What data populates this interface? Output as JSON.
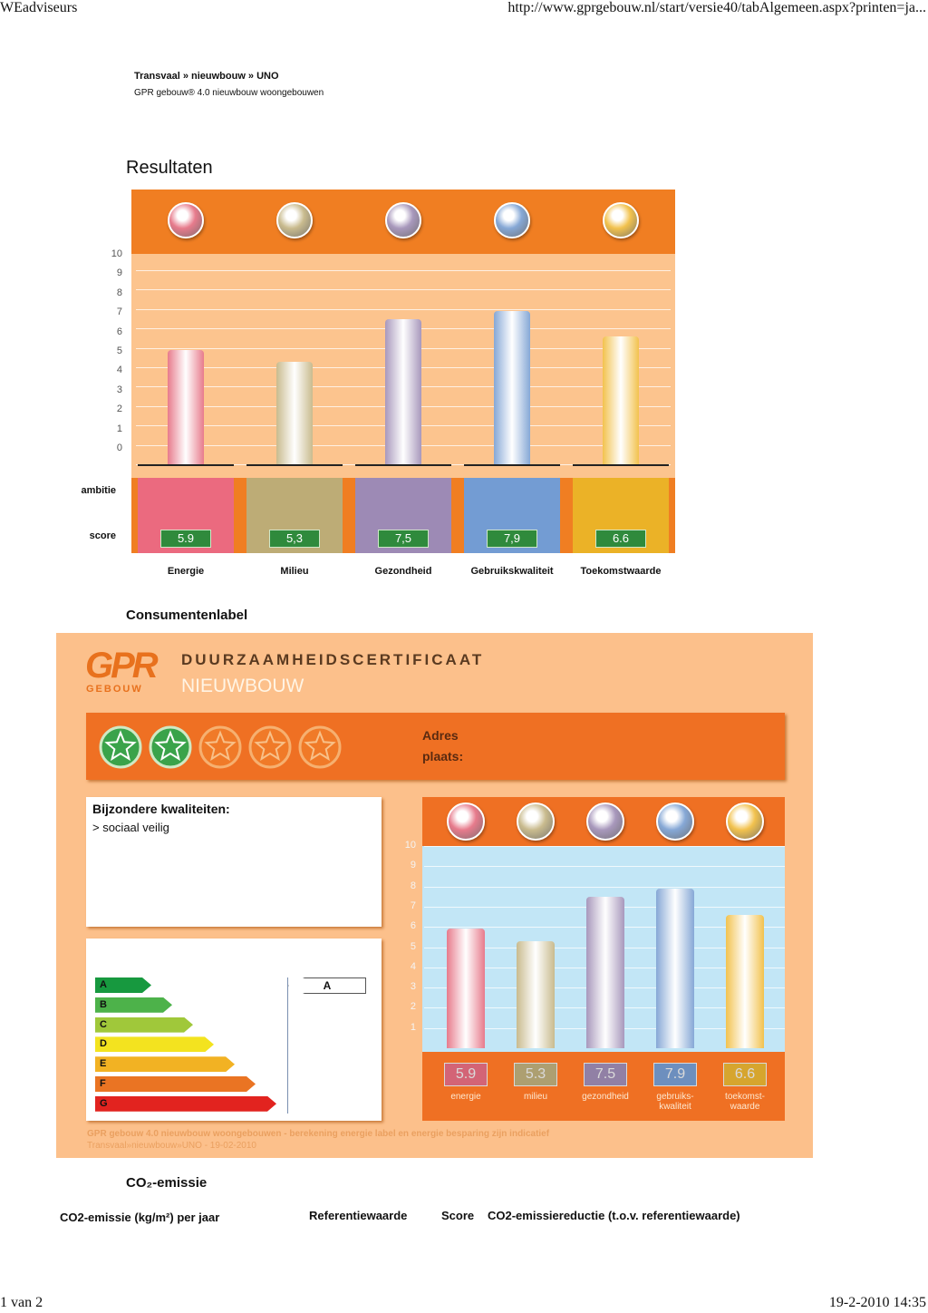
{
  "browser": {
    "title": "WEadviseurs",
    "url": "http://www.gprgebouw.nl/start/versie40/tabAlgemeen.aspx?printen=ja...",
    "page": "1 van 2",
    "timestamp": "19-2-2010 14:35"
  },
  "header": {
    "breadcrumb": "Transvaal » nieuwbouw » UNO",
    "subtitle": "GPR gebouw® 4.0 nieuwbouw woongebouwen"
  },
  "chart_data": [
    {
      "type": "bar",
      "title": "Resultaten",
      "categories": [
        "Energie",
        "Milieu",
        "Gezondheid",
        "Gebruikskwaliteit",
        "Toekomstwaarde"
      ],
      "values": [
        5.9,
        5.3,
        7.5,
        7.9,
        6.6
      ],
      "value_labels": [
        "5.9",
        "5,3",
        "7,5",
        "7,9",
        "6.6"
      ],
      "colors": [
        "#e77b8c",
        "#c9bb8e",
        "#a898bc",
        "#86a8d6",
        "#f2c24e"
      ],
      "ylim": [
        0,
        10
      ],
      "yticks": [
        0,
        1,
        2,
        3,
        4,
        5,
        6,
        7,
        8,
        9,
        10
      ],
      "grid": true,
      "row_labels": [
        "ambitie",
        "score"
      ]
    },
    {
      "type": "bar",
      "categories": [
        "energie",
        "milieu",
        "gezondheid",
        "gebruiks-\nkwaliteit",
        "toekomst-\nwaarde"
      ],
      "values": [
        5.9,
        5.3,
        7.5,
        7.9,
        6.6
      ],
      "colors": [
        "#e77b8c",
        "#c9bb8e",
        "#a898bc",
        "#86a8d6",
        "#f2c24e"
      ],
      "ylim": [
        0,
        10
      ],
      "yticks": [
        1,
        2,
        3,
        4,
        5,
        6,
        7,
        8,
        9,
        10
      ],
      "grid": true
    }
  ],
  "consumer_label": {
    "heading": "Consumentenlabel",
    "logo": "GPR",
    "logo_sub": "GEBOUW",
    "title": "DUURZAAMHEIDSCERTIFICAAT",
    "subtitle": "NIEUWBOUW",
    "rating": {
      "stars": 2,
      "max": 5
    },
    "address": [
      "Adres",
      "plaats:"
    ],
    "qualities": {
      "title": "Bijzondere kwaliteiten:",
      "items": [
        "> sociaal veilig"
      ]
    },
    "energy_label": {
      "classes": [
        "A",
        "B",
        "C",
        "D",
        "E",
        "F",
        "G"
      ],
      "colors": [
        "#17993f",
        "#4db24a",
        "#a0c83a",
        "#f3e31f",
        "#f2b223",
        "#ea7423",
        "#e2231f"
      ],
      "indicated": "A"
    },
    "footer": [
      "GPR gebouw 4.0 nieuwbouw woongebouwen - berekening energie label en energie besparing zijn indicatief",
      "Transvaal»nieuwbouw»UNO - 19-02-2010"
    ]
  },
  "co2": {
    "heading": "CO₂-emissie",
    "columns": [
      "CO2-emissie (kg/m²) per jaar",
      "Referentiewaarde",
      "Score",
      "CO2-emissiereductie (t.o.v. referentiewaarde)"
    ]
  }
}
